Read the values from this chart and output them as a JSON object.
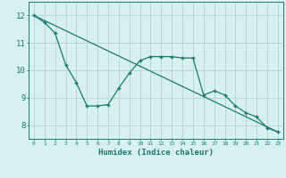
{
  "xlabel": "Humidex (Indice chaleur)",
  "bg_color": "#d8f0f0",
  "grid_color": "#b8d8d8",
  "line_color": "#1a7a6e",
  "xlim": [
    -0.5,
    23.5
  ],
  "ylim": [
    7.5,
    12.5
  ],
  "yticks": [
    8,
    9,
    10,
    11,
    12
  ],
  "xticks": [
    0,
    1,
    2,
    3,
    4,
    5,
    6,
    7,
    8,
    9,
    10,
    11,
    12,
    13,
    14,
    15,
    16,
    17,
    18,
    19,
    20,
    21,
    22,
    23
  ],
  "curve_x": [
    0,
    1,
    2,
    3,
    4,
    5,
    6,
    7,
    8,
    9,
    10,
    11,
    12,
    13,
    14,
    15,
    16,
    17,
    18,
    19,
    20,
    21,
    22,
    23
  ],
  "curve_y": [
    12.0,
    11.75,
    11.35,
    10.2,
    9.55,
    8.7,
    8.7,
    8.75,
    9.35,
    9.9,
    10.35,
    10.5,
    10.5,
    10.5,
    10.45,
    10.45,
    9.1,
    9.25,
    9.1,
    8.7,
    8.45,
    8.3,
    7.9,
    7.75
  ],
  "trend_x": [
    0,
    23
  ],
  "trend_y": [
    12.0,
    7.75
  ]
}
